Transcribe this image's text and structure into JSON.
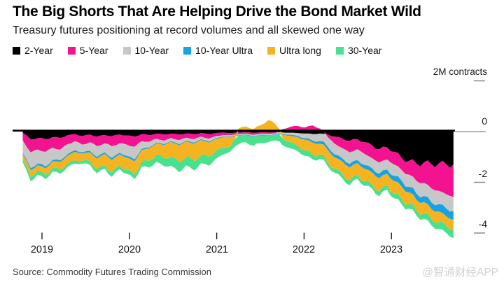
{
  "header": {
    "title": "The Big Shorts That Are Helping Drive the Bond Market Wild",
    "subtitle": "Treasury futures positioning at record volumes and all skewed one way"
  },
  "legend": {
    "items": [
      {
        "label": "2-Year",
        "color": "#000000"
      },
      {
        "label": "5-Year",
        "color": "#f3128f"
      },
      {
        "label": "10-Year",
        "color": "#c7c7c7"
      },
      {
        "label": "10-Year Ultra",
        "color": "#14a4e6"
      },
      {
        "label": "Ultra long",
        "color": "#f5b321"
      },
      {
        "label": "30-Year",
        "color": "#48e18e"
      }
    ]
  },
  "axis": {
    "unit_label": "2M contracts",
    "zero_label": "0",
    "minus2_label": "-2",
    "minus4_label": "-4"
  },
  "xaxis": {
    "years": [
      "2019",
      "2020",
      "2021",
      "2022",
      "2023"
    ]
  },
  "footer": {
    "source": "Source: Commodity Futures Trading Commission",
    "watermark": "@智通财经APP"
  },
  "chart_data": {
    "type": "area",
    "stacked": true,
    "title": "The Big Shorts That Are Helping Drive the Bond Market Wild",
    "ylabel": "2M contracts",
    "unit": "millions of contracts, negative = net short",
    "ylim": [
      -4.5,
      2
    ],
    "grid": false,
    "legend_position": "top",
    "y_tick_values": [
      2,
      0,
      -2,
      -4
    ],
    "x_tick_years": [
      2019,
      2020,
      2021,
      2022,
      2023
    ],
    "x": [
      2018.78,
      2018.87,
      2018.95,
      2019.04,
      2019.12,
      2019.21,
      2019.29,
      2019.38,
      2019.46,
      2019.55,
      2019.63,
      2019.72,
      2019.8,
      2019.89,
      2019.97,
      2020.06,
      2020.14,
      2020.23,
      2020.31,
      2020.4,
      2020.48,
      2020.57,
      2020.65,
      2020.74,
      2020.82,
      2020.91,
      2020.99,
      2021.08,
      2021.16,
      2021.25,
      2021.33,
      2021.42,
      2021.5,
      2021.59,
      2021.67,
      2021.76,
      2021.84,
      2021.93,
      2022.01,
      2022.1,
      2022.18,
      2022.27,
      2022.35,
      2022.44,
      2022.52,
      2022.61,
      2022.69,
      2022.78,
      2022.86,
      2022.95,
      2023.03,
      2023.12,
      2023.2,
      2023.29,
      2023.37,
      2023.46,
      2023.54,
      2023.63,
      2023.71
    ],
    "series": [
      {
        "name": "2-Year",
        "color": "#000000",
        "values": [
          -0.05,
          -0.3,
          -0.26,
          -0.3,
          -0.22,
          -0.25,
          -0.15,
          -0.1,
          -0.18,
          -0.12,
          -0.2,
          -0.14,
          -0.18,
          -0.12,
          -0.16,
          -0.2,
          -0.1,
          -0.14,
          -0.08,
          -0.12,
          -0.08,
          -0.12,
          -0.08,
          -0.1,
          -0.06,
          -0.1,
          -0.06,
          -0.04,
          -0.06,
          -0.04,
          -0.03,
          -0.05,
          -0.03,
          -0.04,
          -0.03,
          -0.04,
          -0.05,
          -0.06,
          -0.08,
          -0.1,
          -0.08,
          -0.12,
          -0.2,
          -0.28,
          -0.36,
          -0.3,
          -0.42,
          -0.55,
          -0.7,
          -0.62,
          -0.8,
          -1.05,
          -1.15,
          -1.28,
          -1.22,
          -1.3,
          -1.26,
          -1.3,
          -1.3
        ]
      },
      {
        "name": "5-Year",
        "color": "#f3128f",
        "values": [
          -0.3,
          -0.52,
          -0.45,
          -0.5,
          -0.42,
          -0.46,
          -0.35,
          -0.28,
          -0.34,
          -0.3,
          -0.38,
          -0.32,
          -0.4,
          -0.34,
          -0.36,
          -0.4,
          -0.28,
          -0.26,
          -0.2,
          -0.24,
          -0.18,
          -0.22,
          -0.16,
          -0.2,
          -0.14,
          -0.18,
          -0.12,
          -0.1,
          -0.08,
          -0.06,
          -0.05,
          -0.08,
          -0.06,
          -0.05,
          -0.04,
          0.1,
          0.18,
          0.22,
          0.16,
          0.24,
          0.12,
          -0.1,
          -0.28,
          -0.38,
          -0.46,
          -0.4,
          -0.46,
          -0.5,
          -0.52,
          -0.48,
          -0.5,
          -0.48,
          -0.55,
          -0.68,
          -0.8,
          -0.95,
          -1.08,
          -1.18,
          -1.28
        ]
      },
      {
        "name": "10-Year",
        "color": "#c7c7c7",
        "values": [
          -0.5,
          -0.62,
          -0.55,
          -0.58,
          -0.48,
          -0.42,
          -0.4,
          -0.36,
          -0.3,
          -0.34,
          -0.42,
          -0.36,
          -0.46,
          -0.38,
          -0.44,
          -0.5,
          -0.3,
          -0.22,
          -0.16,
          -0.14,
          -0.12,
          -0.16,
          -0.12,
          -0.14,
          -0.1,
          -0.12,
          -0.08,
          -0.06,
          -0.05,
          -0.04,
          -0.04,
          -0.05,
          -0.04,
          -0.05,
          -0.04,
          -0.06,
          -0.08,
          -0.12,
          -0.18,
          -0.26,
          -0.3,
          -0.38,
          -0.42,
          -0.4,
          -0.46,
          -0.42,
          -0.44,
          -0.4,
          -0.44,
          -0.4,
          -0.45,
          -0.42,
          -0.48,
          -0.5,
          -0.52,
          -0.55,
          -0.52,
          -0.56,
          -0.56
        ]
      },
      {
        "name": "10-Year Ultra",
        "color": "#14a4e6",
        "values": [
          -0.04,
          -0.08,
          -0.07,
          -0.08,
          -0.06,
          -0.07,
          -0.06,
          -0.06,
          -0.05,
          -0.06,
          -0.07,
          -0.06,
          -0.08,
          -0.06,
          -0.07,
          -0.08,
          -0.05,
          -0.04,
          -0.03,
          -0.03,
          -0.03,
          -0.04,
          -0.03,
          -0.04,
          -0.03,
          -0.04,
          -0.03,
          -0.02,
          -0.02,
          -0.02,
          -0.02,
          -0.02,
          -0.02,
          -0.02,
          -0.02,
          -0.03,
          -0.04,
          -0.05,
          -0.06,
          -0.08,
          -0.1,
          -0.12,
          -0.12,
          -0.13,
          -0.14,
          -0.12,
          -0.15,
          -0.16,
          -0.18,
          -0.17,
          -0.2,
          -0.23,
          -0.22,
          -0.25,
          -0.24,
          -0.27,
          -0.29,
          -0.31,
          -0.34
        ]
      },
      {
        "name": "Ultra long",
        "color": "#f5b321",
        "values": [
          -0.2,
          -0.26,
          -0.22,
          -0.25,
          -0.26,
          -0.3,
          -0.32,
          -0.34,
          -0.28,
          -0.35,
          -0.42,
          -0.46,
          -0.5,
          -0.44,
          -0.48,
          -0.52,
          -0.46,
          -0.5,
          -0.44,
          -0.52,
          -0.58,
          -0.66,
          -0.6,
          -0.68,
          -0.6,
          -0.55,
          -0.48,
          -0.42,
          -0.36,
          0.12,
          0.2,
          0.1,
          0.25,
          0.45,
          0.3,
          -0.15,
          -0.25,
          -0.35,
          -0.42,
          -0.48,
          -0.44,
          -0.5,
          -0.46,
          -0.5,
          -0.52,
          -0.46,
          -0.5,
          -0.48,
          -0.52,
          -0.46,
          -0.5,
          -0.5,
          -0.46,
          -0.42,
          -0.44,
          -0.4,
          -0.42,
          -0.38,
          -0.4
        ]
      },
      {
        "name": "30-Year",
        "color": "#48e18e",
        "values": [
          -0.12,
          -0.18,
          -0.15,
          -0.17,
          -0.14,
          -0.16,
          -0.13,
          -0.12,
          -0.11,
          -0.14,
          -0.16,
          -0.13,
          -0.17,
          -0.14,
          -0.16,
          -0.18,
          -0.2,
          -0.26,
          -0.28,
          -0.32,
          -0.36,
          -0.4,
          -0.34,
          -0.38,
          -0.32,
          -0.36,
          -0.3,
          -0.26,
          -0.2,
          -0.34,
          -0.28,
          -0.36,
          -0.3,
          -0.26,
          -0.22,
          -0.28,
          -0.24,
          -0.2,
          -0.22,
          -0.18,
          -0.16,
          -0.15,
          -0.14,
          -0.16,
          -0.18,
          -0.15,
          -0.17,
          -0.16,
          -0.19,
          -0.16,
          -0.18,
          -0.2,
          -0.18,
          -0.2,
          -0.22,
          -0.24,
          -0.26,
          -0.28,
          -0.32
        ]
      }
    ]
  }
}
